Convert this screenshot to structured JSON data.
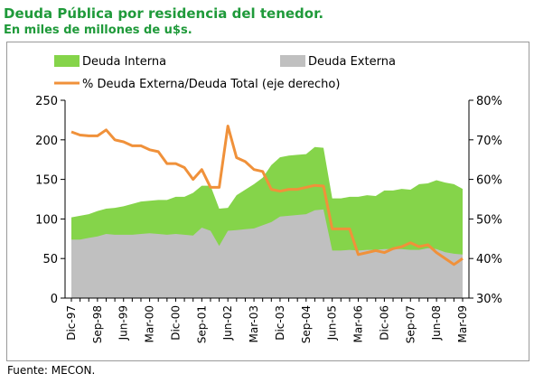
{
  "title": "Deuda Pública por residencia del tenedor.",
  "subtitle": "En miles de millones de u$s.",
  "source": "Fuente: MECON.",
  "colors": {
    "interna": "#85d44a",
    "externa": "#c0c0c0",
    "pct_line": "#f0913a",
    "title": "#1f9a3a"
  },
  "chart_data": {
    "type": "area",
    "legend": [
      {
        "label": "Deuda Interna",
        "marker": "area",
        "color": "#85d44a"
      },
      {
        "label": "Deuda Externa",
        "marker": "area",
        "color": "#c0c0c0"
      },
      {
        "label": "% Deuda Externa/Deuda Total (eje derecho)",
        "marker": "line",
        "color": "#f0913a"
      }
    ],
    "legend_position": "top",
    "x_tick_labels": [
      "Dic-97",
      "Sep-98",
      "Jun-99",
      "Mar-00",
      "Dic-00",
      "Sep-01",
      "Jun-02",
      "Mar-03",
      "Dic-03",
      "Sep-04",
      "Jun-05",
      "Mar-06",
      "Dic-06",
      "Sep-07",
      "Jun-08",
      "Mar-09"
    ],
    "x_quarters": [
      "Dic-97",
      "Mar-98",
      "Jun-98",
      "Sep-98",
      "Dic-98",
      "Mar-99",
      "Jun-99",
      "Sep-99",
      "Dic-99",
      "Mar-00",
      "Jun-00",
      "Sep-00",
      "Dic-00",
      "Mar-01",
      "Jun-01",
      "Sep-01",
      "Dic-01",
      "Mar-02",
      "Jun-02",
      "Sep-02",
      "Dic-02",
      "Mar-03",
      "Jun-03",
      "Sep-03",
      "Dic-03",
      "Mar-04",
      "Jun-04",
      "Sep-04",
      "Dic-04",
      "Mar-05",
      "Jun-05",
      "Sep-05",
      "Dic-05",
      "Mar-06",
      "Jun-06",
      "Sep-06",
      "Dic-06",
      "Mar-07",
      "Jun-07",
      "Sep-07",
      "Dic-07",
      "Mar-08",
      "Jun-08",
      "Sep-08",
      "Dic-08",
      "Mar-09"
    ],
    "y_left": {
      "min": 0,
      "max": 250,
      "ticks": [
        0,
        50,
        100,
        150,
        200,
        250
      ]
    },
    "y_right": {
      "min": 30,
      "max": 80,
      "ticks": [
        "30%",
        "40%",
        "50%",
        "60%",
        "70%",
        "80%"
      ]
    },
    "series": [
      {
        "name": "Deuda Total",
        "axis": "left",
        "values": [
          102,
          104,
          106,
          110,
          113,
          114,
          116,
          119,
          122,
          123,
          124,
          124,
          128,
          128,
          133,
          142,
          142,
          113,
          114,
          130,
          137,
          144,
          152,
          168,
          178,
          180,
          181,
          182,
          191,
          190,
          126,
          126,
          128,
          128,
          130,
          129,
          136,
          136,
          138,
          137,
          144,
          145,
          149,
          146,
          144,
          138
        ]
      },
      {
        "name": "Deuda Externa",
        "axis": "left",
        "values": [
          74,
          74,
          76,
          78,
          81,
          80,
          80,
          80,
          81,
          82,
          81,
          80,
          81,
          80,
          79,
          89,
          85,
          66,
          85,
          86,
          87,
          88,
          92,
          96,
          103,
          104,
          105,
          106,
          111,
          112,
          60,
          60,
          61,
          60,
          61,
          61,
          62,
          62,
          62,
          61,
          61,
          63,
          62,
          58,
          56,
          55
        ]
      },
      {
        "name": "% Deuda Externa/Deuda Total (eje derecho)",
        "axis": "right",
        "values": [
          72,
          71.2,
          71,
          71,
          72.5,
          70,
          69.5,
          68.5,
          68.5,
          67.5,
          67,
          64,
          64,
          63,
          60,
          62.5,
          58,
          58,
          73.5,
          65.5,
          64.5,
          62.5,
          62,
          57.5,
          57,
          57.5,
          57.5,
          58,
          58.5,
          58.3,
          47.5,
          47.5,
          47.5,
          41,
          41.5,
          42,
          41.5,
          42.5,
          43,
          44,
          43,
          43.5,
          41.5,
          40,
          38.5,
          40
        ]
      }
    ]
  }
}
